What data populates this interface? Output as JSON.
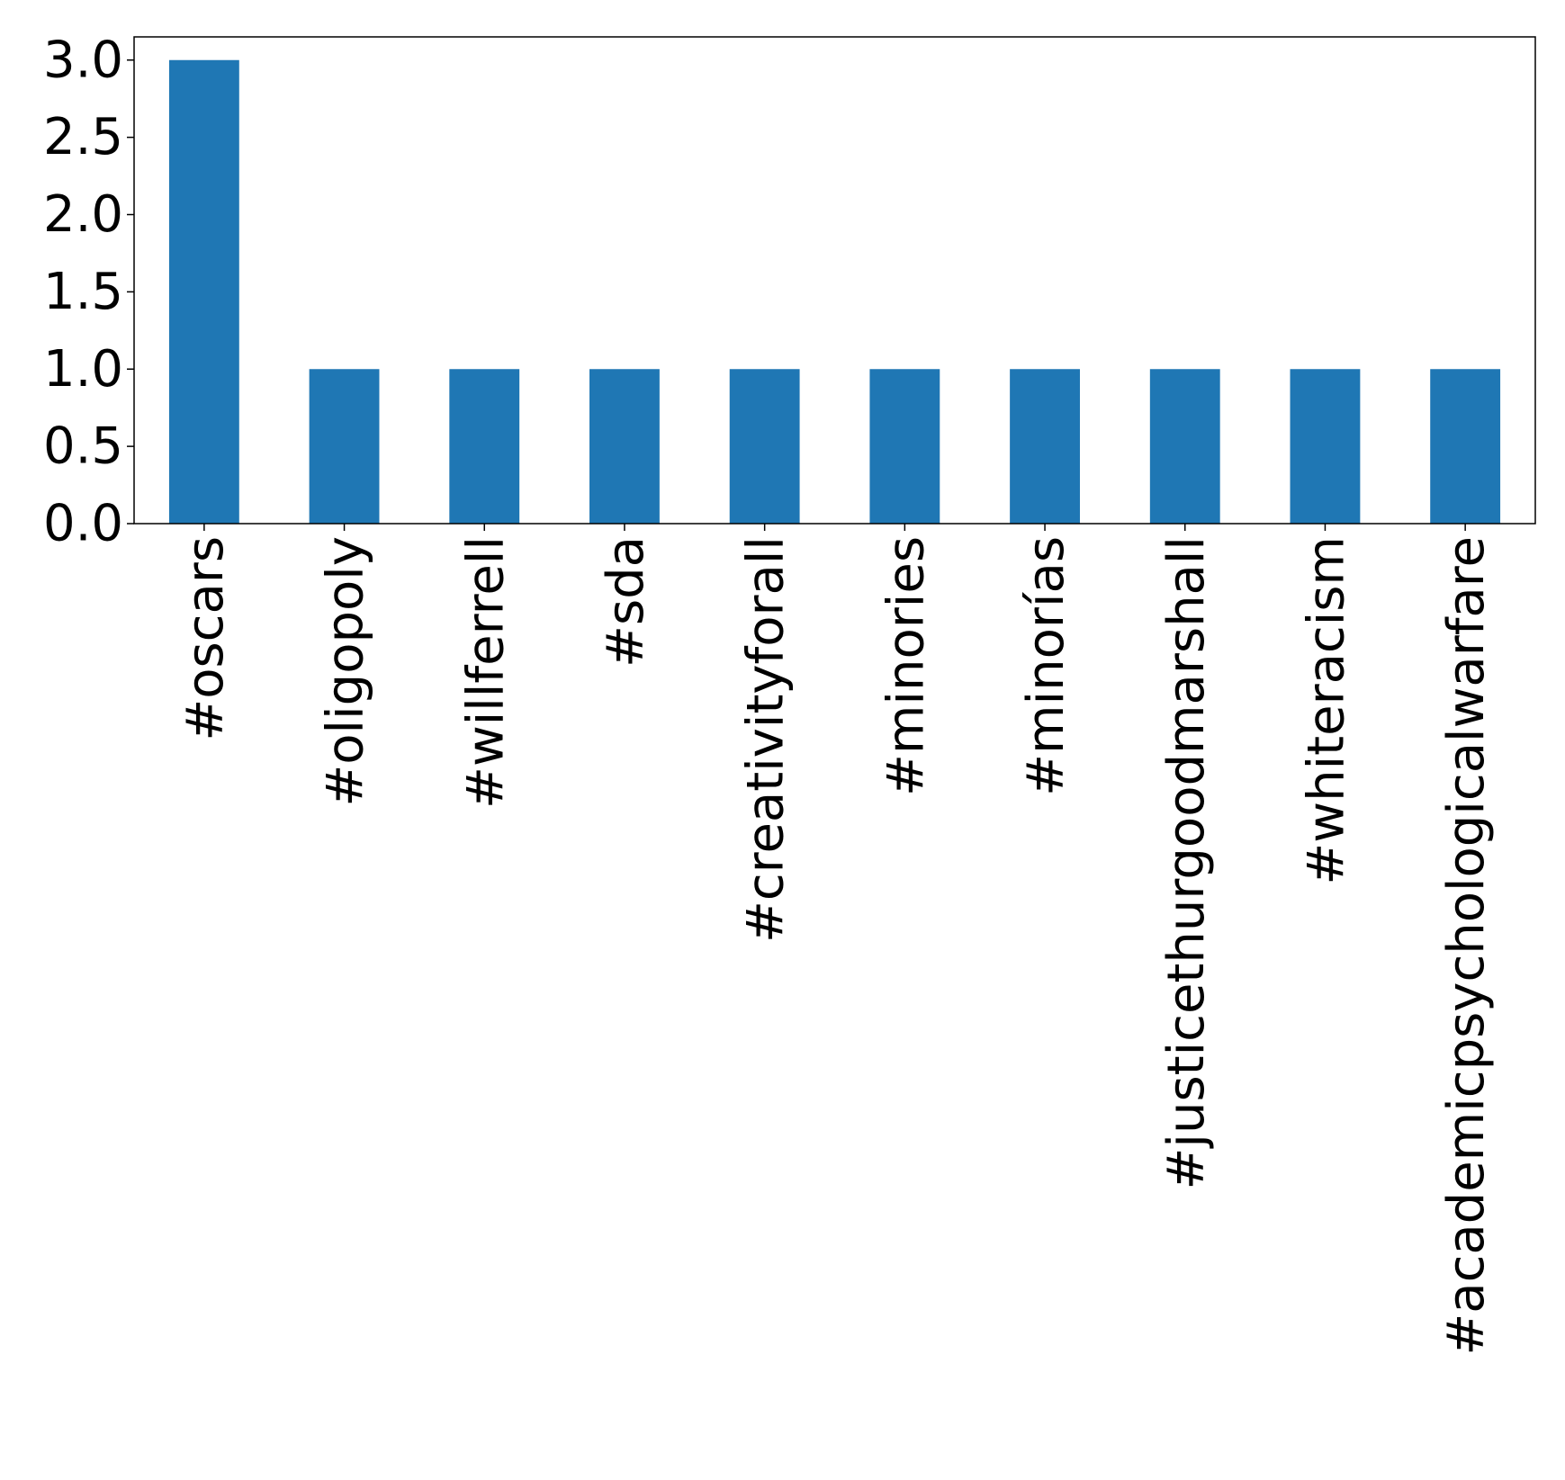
{
  "chart_data": {
    "type": "bar",
    "title": "",
    "xlabel": "",
    "ylabel": "",
    "categories": [
      "#oscars",
      "#oligopoly",
      "#willferrell",
      "#sda",
      "#creativityforall",
      "#minories",
      "#minorías",
      "#justicethurgoodmarshall",
      "#whiteracism",
      "#academicpsychologicalwarfare"
    ],
    "values": [
      3,
      1,
      1,
      1,
      1,
      1,
      1,
      1,
      1,
      1
    ],
    "ylim": [
      0,
      3.15
    ],
    "yticks": [
      "0.0",
      "0.5",
      "1.0",
      "1.5",
      "2.0",
      "2.5",
      "3.0"
    ],
    "grid": false,
    "legend": "none",
    "bar_color": "#1f77b4"
  }
}
